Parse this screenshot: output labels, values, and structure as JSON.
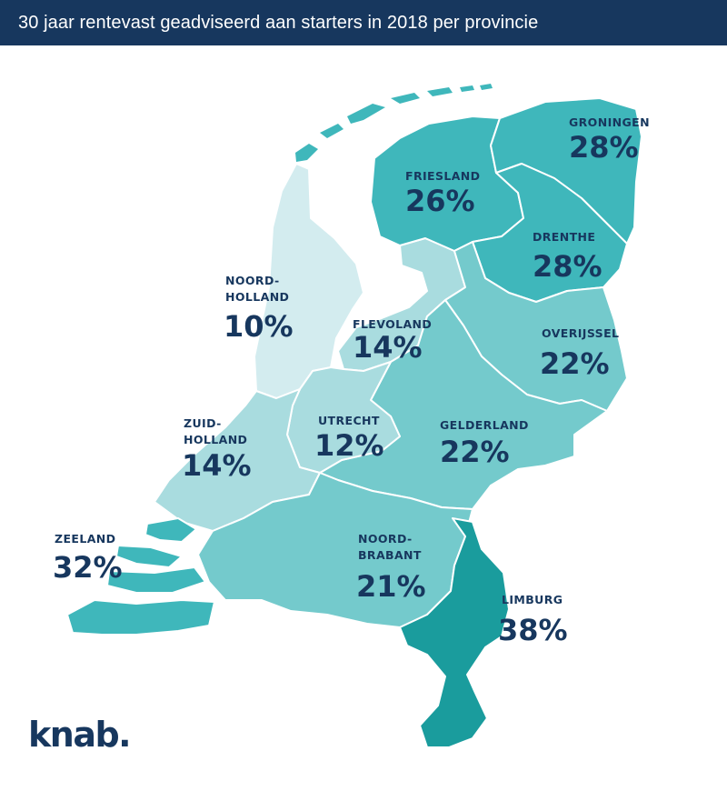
{
  "header": {
    "title": "30 jaar rentevast geadviseerd aan starters in 2018 per provincie"
  },
  "brand": {
    "logo_text": "knab."
  },
  "colors": {
    "header_bg": "#17375e",
    "label": "#17375e",
    "shade_lightest": "#d3ecef",
    "shade_light": "#a9dcdf",
    "shade_mid": "#74cacc",
    "shade_dark": "#3fb7bb",
    "shade_darkest": "#1a9c9d"
  },
  "provinces": [
    {
      "id": "groningen",
      "name": "GRONINGEN",
      "name_line2": "",
      "percent": "28%",
      "value": 28
    },
    {
      "id": "friesland",
      "name": "FRIESLAND",
      "name_line2": "",
      "percent": "26%",
      "value": 26
    },
    {
      "id": "drenthe",
      "name": "DRENTHE",
      "name_line2": "",
      "percent": "28%",
      "value": 28
    },
    {
      "id": "noord-holland",
      "name": "NOORD-",
      "name_line2": "HOLLAND",
      "percent": "10%",
      "value": 10
    },
    {
      "id": "flevoland",
      "name": "FLEVOLAND",
      "name_line2": "",
      "percent": "14%",
      "value": 14
    },
    {
      "id": "overijssel",
      "name": "OVERIJSSEL",
      "name_line2": "",
      "percent": "22%",
      "value": 22
    },
    {
      "id": "zuid-holland",
      "name": "ZUID-",
      "name_line2": "HOLLAND",
      "percent": "14%",
      "value": 14
    },
    {
      "id": "utrecht",
      "name": "UTRECHT",
      "name_line2": "",
      "percent": "12%",
      "value": 12
    },
    {
      "id": "gelderland",
      "name": "GELDERLAND",
      "name_line2": "",
      "percent": "22%",
      "value": 22
    },
    {
      "id": "zeeland",
      "name": "ZEELAND",
      "name_line2": "",
      "percent": "32%",
      "value": 32
    },
    {
      "id": "noord-brabant",
      "name": "NOORD-",
      "name_line2": "BRABANT",
      "percent": "21%",
      "value": 21
    },
    {
      "id": "limburg",
      "name": "LIMBURG",
      "name_line2": "",
      "percent": "38%",
      "value": 38
    }
  ]
}
